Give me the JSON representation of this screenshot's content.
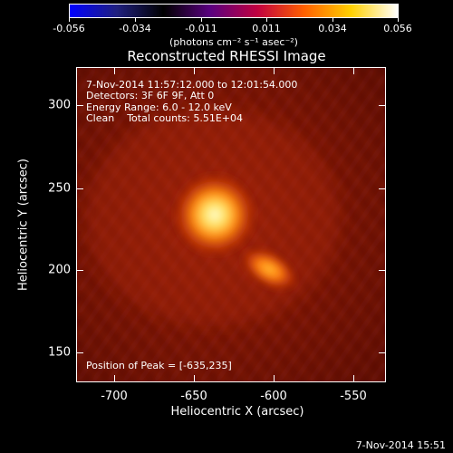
{
  "colorbar": {
    "ticks": [
      "-0.056",
      "-0.034",
      "-0.011",
      "0.011",
      "0.034",
      "0.056"
    ],
    "units": "(photons cm⁻² s⁻¹ asec⁻²)",
    "gradient_colors": [
      "#0000ff",
      "#202080",
      "#000000",
      "#5a0080",
      "#c00040",
      "#ff6000",
      "#ffd000",
      "#ffffff"
    ]
  },
  "title": "Reconstructed RHESSI Image",
  "annotations": {
    "time_range": "7-Nov-2014 11:57:12.000 to 12:01:54.000",
    "detectors": "Detectors: 3F 6F 9F, Att 0",
    "energy": "Energy Range: 6.0 - 12.0 keV",
    "clean": "Clean    Total counts: 5.51E+04",
    "peak": "Position of Peak = [-635,235]"
  },
  "axes": {
    "x_title": "Heliocentric X (arcsec)",
    "y_title": "Heliocentric Y (arcsec)",
    "x_ticks": [
      "-700",
      "-650",
      "-600",
      "-550"
    ],
    "y_ticks": [
      "300",
      "250",
      "200",
      "150"
    ]
  },
  "footer": "7-Nov-2014 15:51",
  "image": {
    "x_range": [
      -727,
      -533
    ],
    "y_range": [
      130,
      325
    ],
    "background_color": "#7a1405",
    "sources": [
      {
        "x": -635,
        "y": 235,
        "peak": "primary"
      },
      {
        "x": -602,
        "y": 205,
        "peak": "secondary"
      }
    ]
  }
}
